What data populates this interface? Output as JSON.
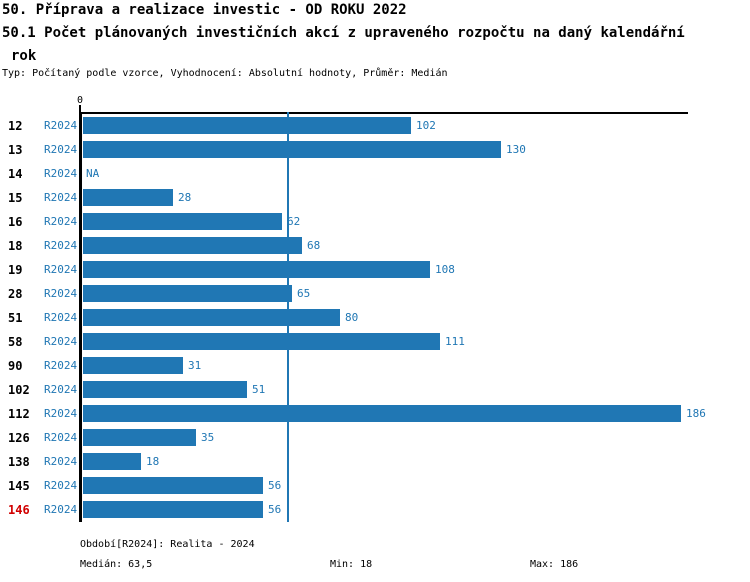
{
  "title": {
    "line1": "50. Příprava a realizace investic - OD ROKU 2022",
    "line2": "50.1 Počet plánovaných investičních akcí z upraveného rozpočtu na daný kalendářní",
    "line3": "rok",
    "meta": "Typ: Počítaný podle vzorce, Vyhodnocení: Absolutní hodnoty, Průměr: Medián"
  },
  "chart_data": {
    "type": "bar",
    "orientation": "horizontal",
    "title": "50.1 Počet plánovaných investičních akcí z upraveného rozpočtu na daný kalendářní rok",
    "series_label": "R2024",
    "categories": [
      "12",
      "13",
      "14",
      "15",
      "16",
      "18",
      "19",
      "28",
      "51",
      "58",
      "90",
      "102",
      "112",
      "126",
      "138",
      "145",
      "146"
    ],
    "values": [
      102,
      130,
      null,
      28,
      62,
      68,
      108,
      65,
      80,
      111,
      31,
      51,
      186,
      35,
      18,
      56,
      56
    ],
    "value_labels": [
      "102",
      "130",
      "NA",
      "28",
      "62",
      "68",
      "108",
      "65",
      "80",
      "111",
      "31",
      "51",
      "186",
      "35",
      "18",
      "56",
      "56"
    ],
    "highlight_category": "146",
    "axis": {
      "origin_label": "0",
      "xmin": 0,
      "xmax": 188,
      "gridline_value": 63.5,
      "grid": "single-median-line"
    },
    "legend": "none",
    "stats": {
      "median": "63,5",
      "min": 18,
      "max": 186
    },
    "colors": {
      "bar": "#2077b4",
      "blue_text": "#2077b4",
      "highlight_red": "#d10000",
      "axis_black": "#000000"
    }
  },
  "footer": {
    "period": "Období[R2024]: Realita - 2024",
    "median": "Medián: 63,5",
    "min": "Min: 18",
    "max": "Max: 186"
  }
}
